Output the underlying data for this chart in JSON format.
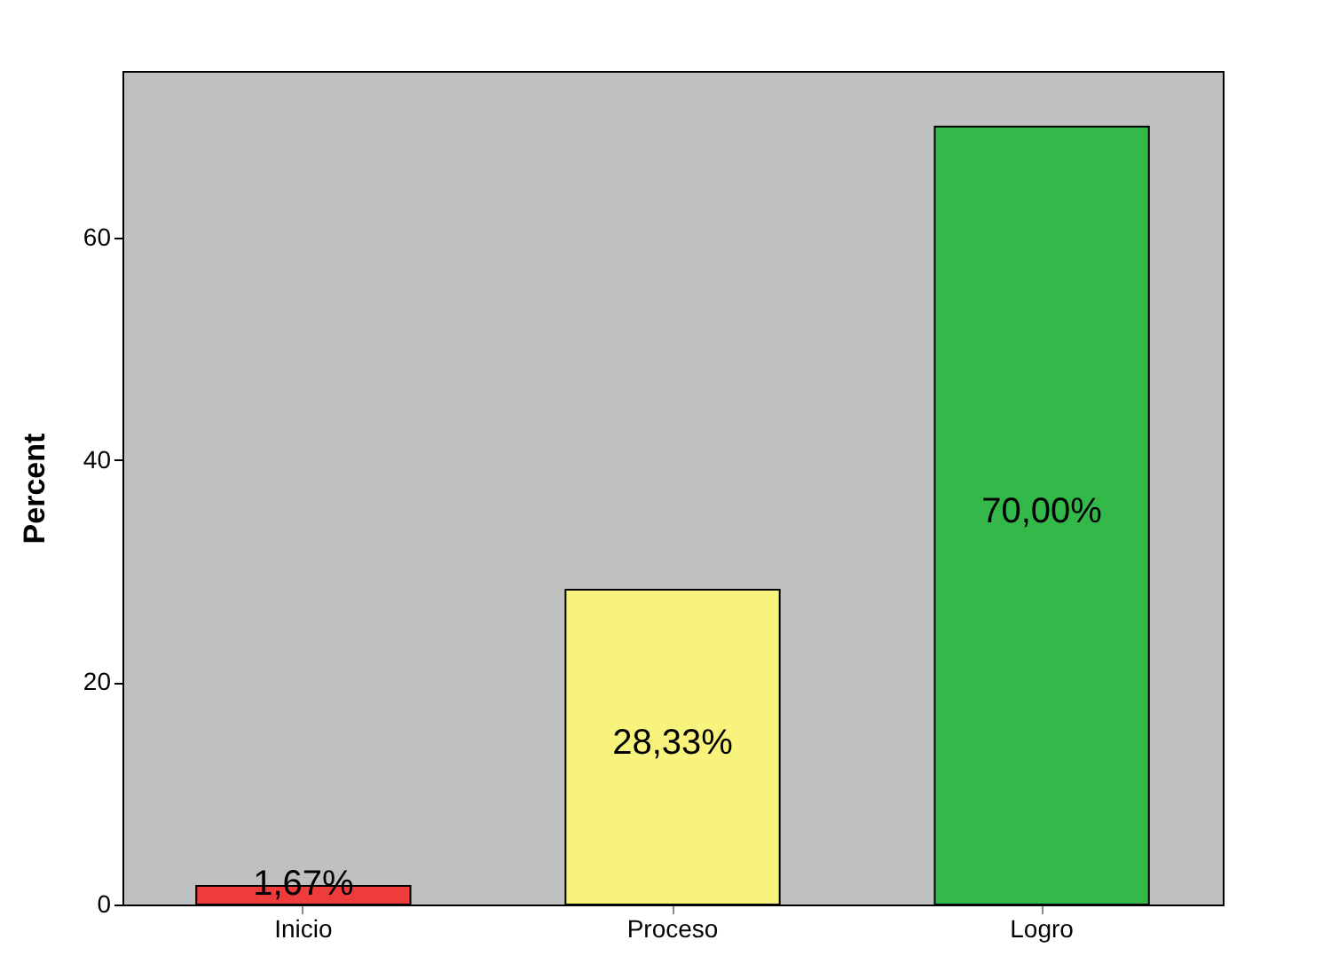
{
  "chart_data": {
    "type": "bar",
    "ylabel": "Percent",
    "categories": [
      "Inicio",
      "Proceso",
      "Logro"
    ],
    "values": [
      1.67,
      28.33,
      70.0
    ],
    "colors": [
      "#ee3b3b",
      "#f7f37c",
      "#34b849"
    ],
    "value_labels": [
      "1,67%",
      "28,33%",
      "70,00%"
    ],
    "ylim": [
      0,
      75
    ],
    "yticks": [
      0,
      20,
      40,
      60
    ],
    "grid": false,
    "legend": false
  }
}
